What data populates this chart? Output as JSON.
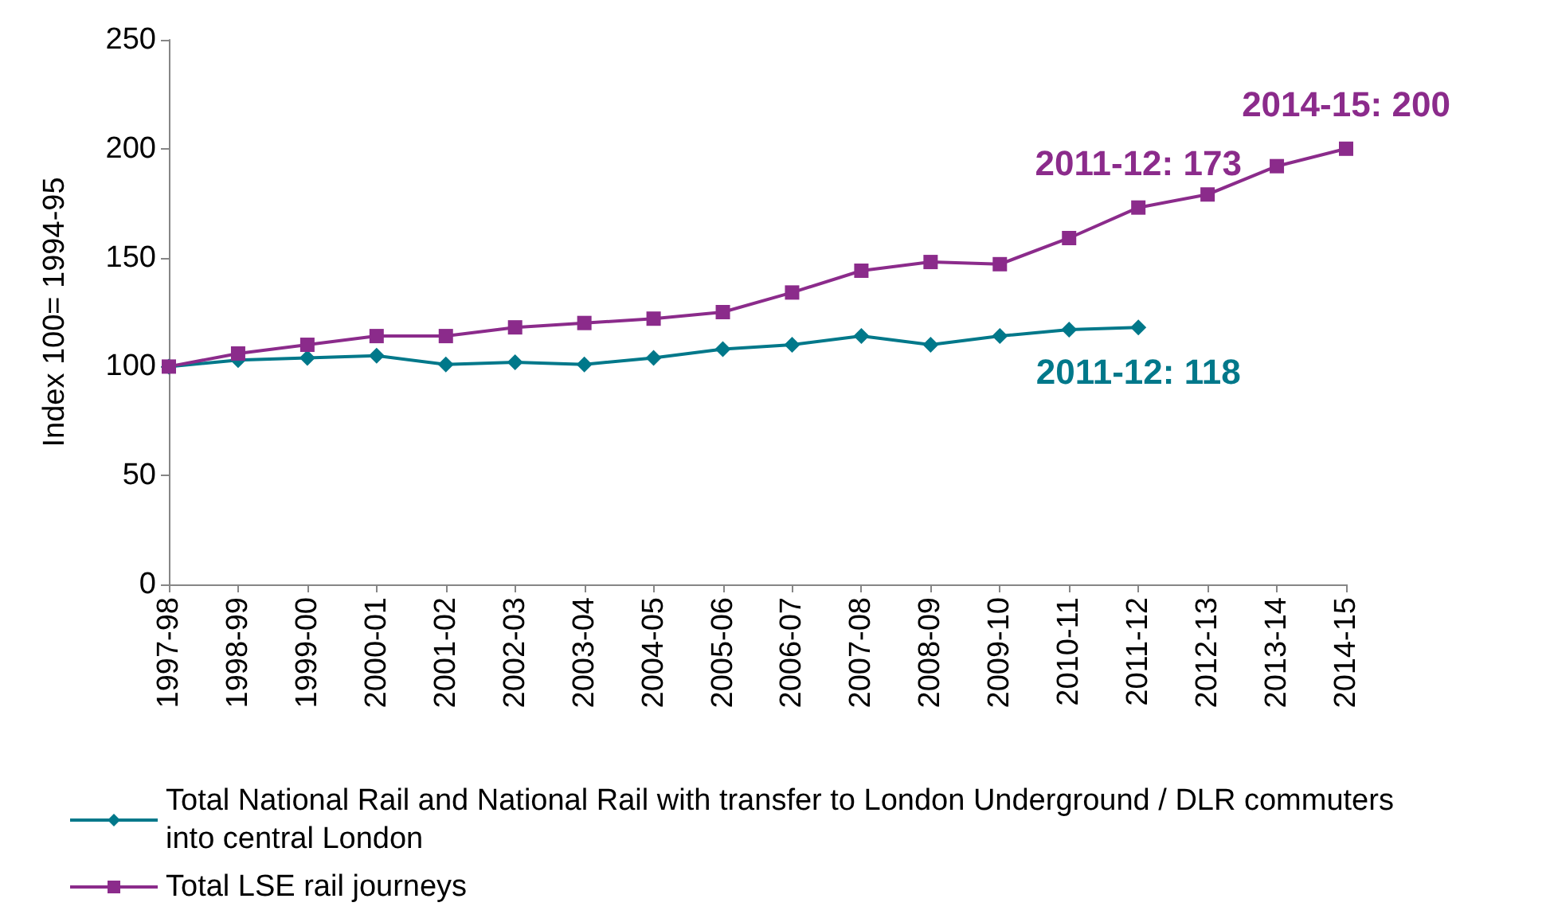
{
  "chart_data": {
    "type": "line",
    "ylabel": "Index 100= 1994-95",
    "categories": [
      "1997-98",
      "1998-99",
      "1999-00",
      "2000-01",
      "2001-02",
      "2002-03",
      "2003-04",
      "2004-05",
      "2005-06",
      "2006-07",
      "2007-08",
      "2008-09",
      "2009-10",
      "2010-11",
      "2011-12",
      "2012-13",
      "2013-14",
      "2014-15"
    ],
    "series": [
      {
        "name": "Total National Rail and National Rail with transfer to London Underground / DLR commuters into central London",
        "color": "#00788a",
        "marker": "diamond",
        "values": [
          100,
          103,
          104,
          105,
          101,
          102,
          101,
          104,
          108,
          110,
          114,
          110,
          114,
          117,
          118,
          null,
          null,
          null
        ]
      },
      {
        "name": "Total LSE rail journeys",
        "color": "#8b2b8b",
        "marker": "square",
        "values": [
          100,
          106,
          110,
          114,
          114,
          118,
          120,
          122,
          125,
          134,
          144,
          148,
          147,
          159,
          173,
          179,
          192,
          200
        ]
      }
    ],
    "annotations": [
      {
        "text": "2011-12: 173",
        "x": "2011-12",
        "y": 173
      },
      {
        "text": "2014-15: 200",
        "x": "2014-15",
        "y": 200
      },
      {
        "text": "2011-12: 118",
        "x": "2011-12",
        "y": 118
      }
    ],
    "ylim": [
      0,
      250
    ],
    "yticks": [
      0,
      50,
      100,
      150,
      200,
      250
    ],
    "grid": false,
    "legend": "bottom",
    "line_style": "solid"
  }
}
